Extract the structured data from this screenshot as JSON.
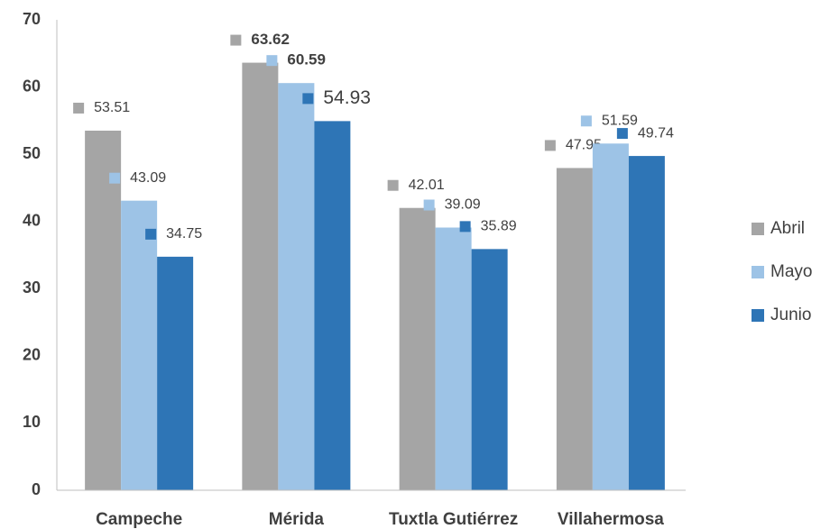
{
  "chart_data": {
    "type": "bar",
    "categories": [
      "Campeche",
      "Mérida",
      "Tuxtla Gutiérrez",
      "Villahermosa"
    ],
    "series": [
      {
        "name": "Abril",
        "color": "#a5a5a5",
        "values": [
          53.51,
          63.62,
          42.01,
          47.95
        ]
      },
      {
        "name": "Mayo",
        "color": "#9dc3e6",
        "values": [
          43.09,
          60.59,
          39.09,
          51.59
        ]
      },
      {
        "name": "Junio",
        "color": "#2e75b6",
        "values": [
          34.75,
          54.93,
          35.89,
          49.74
        ]
      }
    ],
    "ylim": [
      0,
      70
    ],
    "yticks": [
      0,
      10,
      20,
      30,
      40,
      50,
      60,
      70
    ],
    "grid": false,
    "legend": "right"
  }
}
